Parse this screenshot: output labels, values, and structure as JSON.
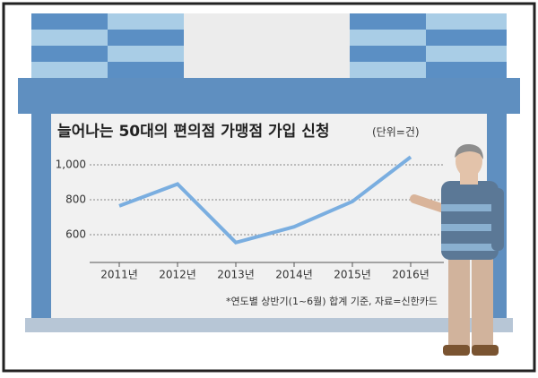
{
  "chart_data": {
    "type": "line",
    "title": "늘어나는 50대의 편의점 가맹점 가입 신청",
    "subtitle": "(단위=건)",
    "categories": [
      "2011년",
      "2012년",
      "2013년",
      "2014년",
      "2015년",
      "2016년"
    ],
    "values": [
      765,
      890,
      555,
      645,
      790,
      1045
    ],
    "color": "#7aaee0",
    "ylim": [
      500,
      1100
    ],
    "yticks": [
      600,
      800,
      {
        "value": 1000,
        "label": "1,000"
      }
    ],
    "grid": true,
    "note": "*연도별 상반기(1~6월) 합계 기준, 자료=신한카드"
  }
}
